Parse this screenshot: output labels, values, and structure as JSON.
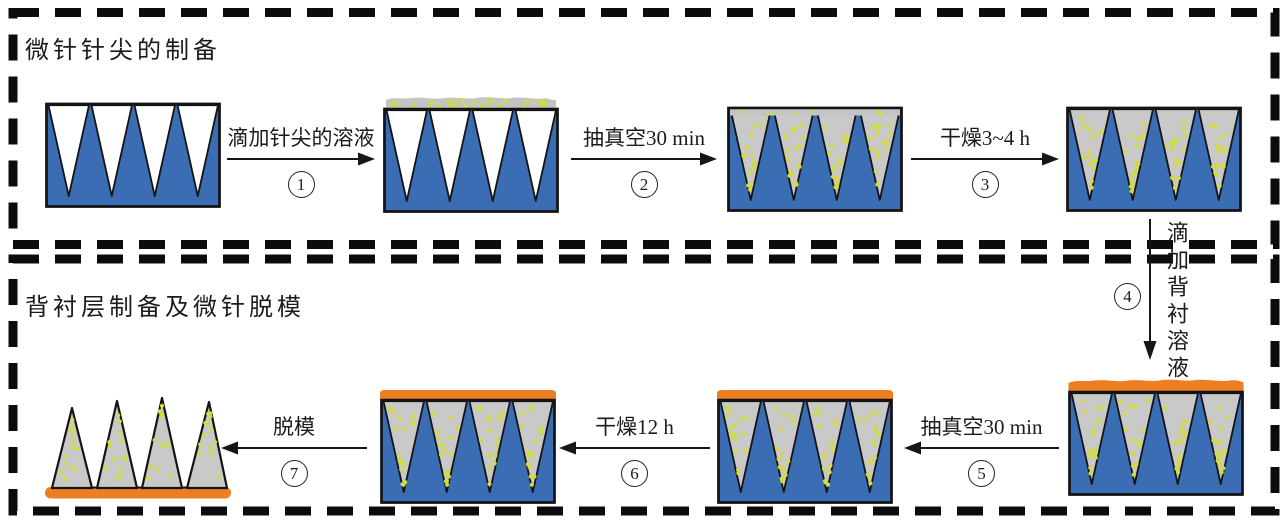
{
  "figure": {
    "sections": [
      {
        "id": "tip-preparation",
        "title": "微针针尖的制备"
      },
      {
        "id": "backing-and-demolding",
        "title": "背衬层制备及微针脱模"
      }
    ],
    "steps": [
      {
        "number": "1",
        "label": "滴加针尖的溶液",
        "direction": "right"
      },
      {
        "number": "2",
        "label": "抽真空30 min",
        "direction": "right"
      },
      {
        "number": "3",
        "label": "干燥3~4 h",
        "direction": "right"
      },
      {
        "number": "4",
        "label": "滴加背衬溶液",
        "direction": "down"
      },
      {
        "number": "5",
        "label": "抽真空30 min",
        "direction": "left"
      },
      {
        "number": "6",
        "label": "干燥12 h",
        "direction": "left"
      },
      {
        "number": "7",
        "label": "脱模",
        "direction": "left"
      }
    ],
    "illustrations": [
      {
        "id": "empty-mold"
      },
      {
        "id": "mold-tip-solution-on-surface"
      },
      {
        "id": "mold-cavities-filled-with-surface-layer"
      },
      {
        "id": "mold-cavities-filled-dried"
      },
      {
        "id": "mold-backing-solution-on-top"
      },
      {
        "id": "mold-backing-layer-flattened"
      },
      {
        "id": "mold-backing-layer-dried"
      },
      {
        "id": "demolded-microneedle-patch"
      }
    ],
    "colors": {
      "mold_blue": "#3a6db4",
      "needle_gray": "#c9c9c9",
      "band_gray": "#c4c4c4",
      "dot_green": "#d2dc3c",
      "backing_orange": "#ee7e22",
      "outline": "#141414",
      "border_dash": "#0c0c0c"
    }
  }
}
